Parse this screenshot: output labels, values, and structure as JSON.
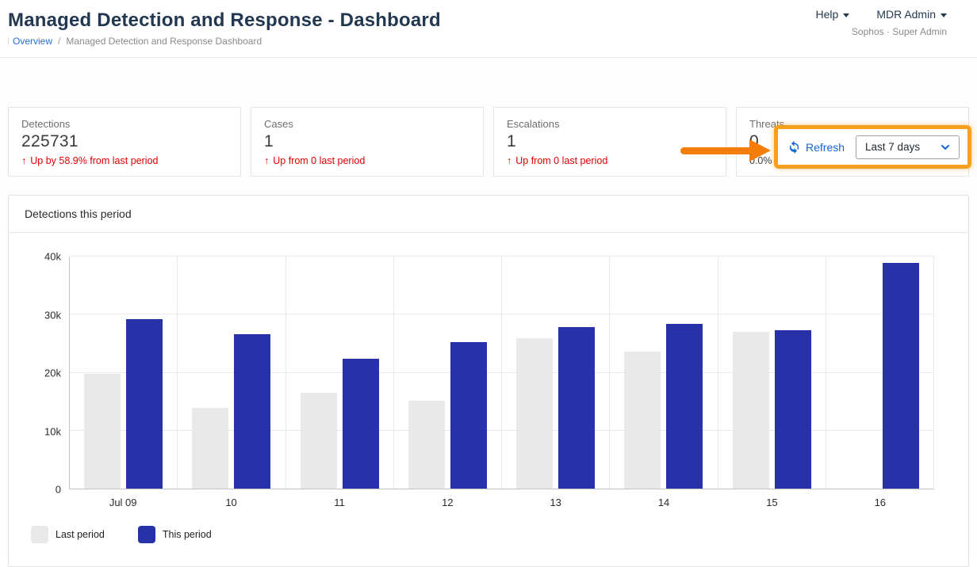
{
  "header": {
    "title": "Managed Detection and Response - Dashboard",
    "breadcrumb": {
      "link": "Overview",
      "separator": "/",
      "current": "Managed Detection and Response Dashboard"
    },
    "help_menu": "Help",
    "account_menu": "MDR Admin",
    "account_subtitle": "Sophos · Super Admin"
  },
  "toolbar": {
    "refresh_label": "Refresh",
    "period_selector_value": "Last 7 days",
    "highlight_color": "#F5A01E",
    "arrow_color": "#F57D0A",
    "link_color": "#1565D8"
  },
  "stat_cards": [
    {
      "label": "Detections",
      "value": "225731",
      "delta": "Up by 58.9% from last period",
      "trend": "up"
    },
    {
      "label": "Cases",
      "value": "1",
      "delta": "Up from 0 last period",
      "trend": "up"
    },
    {
      "label": "Escalations",
      "value": "1",
      "delta": "Up from 0 last period",
      "trend": "up"
    },
    {
      "label": "Threats",
      "value": "0",
      "delta": "0.0% change from last period",
      "trend": "none"
    }
  ],
  "chart_panel": {
    "title": "Detections this period"
  },
  "chart_data": {
    "type": "bar",
    "title": "Detections this period",
    "categories": [
      "Jul 09",
      "10",
      "11",
      "12",
      "13",
      "14",
      "15",
      "16"
    ],
    "series": [
      {
        "name": "Last period",
        "color": "#E9E9E9",
        "values": [
          19800,
          13900,
          16500,
          15200,
          25900,
          23600,
          27000,
          0
        ]
      },
      {
        "name": "This period",
        "color": "#2832A8",
        "values": [
          29200,
          26600,
          22400,
          25200,
          27800,
          28400,
          27300,
          38900
        ]
      }
    ],
    "xlabel": "",
    "ylabel": "",
    "ylim": [
      0,
      40000
    ],
    "yticks": [
      "0",
      "10k",
      "20k",
      "30k",
      "40k"
    ],
    "grid": true,
    "legend_position": "bottom-left"
  }
}
